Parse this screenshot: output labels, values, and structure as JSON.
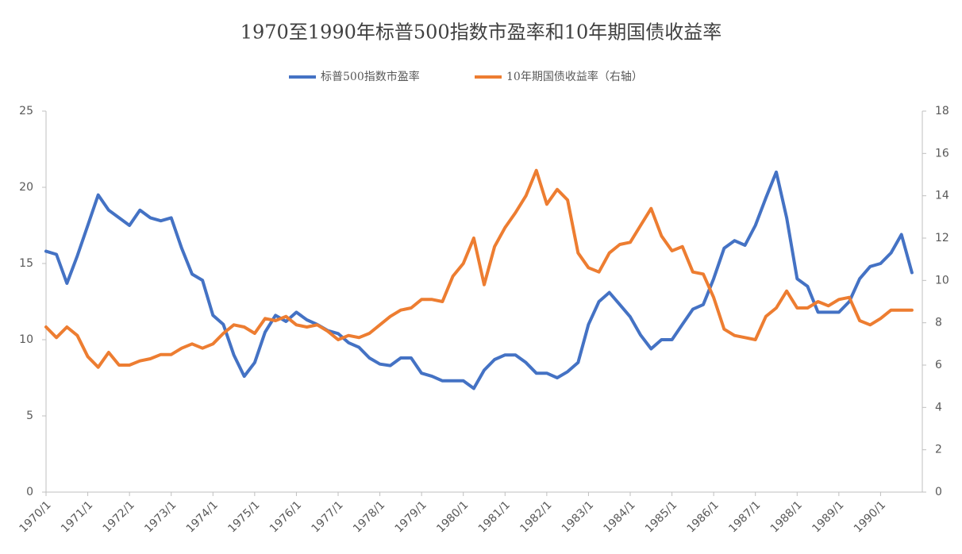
{
  "chart_data": {
    "type": "line",
    "title": "1970至1990年标普500指数市盈率和10年期国债收益率",
    "categories": [
      "1970/1",
      null,
      null,
      null,
      "1971/1",
      null,
      null,
      null,
      "1972/1",
      null,
      null,
      null,
      "1973/1",
      null,
      null,
      null,
      "1974/1",
      null,
      null,
      null,
      "1975/1",
      null,
      null,
      null,
      "1976/1",
      null,
      null,
      null,
      "1977/1",
      null,
      null,
      null,
      "1978/1",
      null,
      null,
      null,
      "1979/1",
      null,
      null,
      null,
      "1980/1",
      null,
      null,
      null,
      "1981/1",
      null,
      null,
      null,
      "1982/1",
      null,
      null,
      null,
      "1983/1",
      null,
      null,
      null,
      "1984/1",
      null,
      null,
      null,
      "1985/1",
      null,
      null,
      null,
      "1986/1",
      null,
      null,
      null,
      "1987/1",
      null,
      null,
      null,
      "1988/1",
      null,
      null,
      null,
      "1989/1",
      null,
      null,
      null,
      "1990/1",
      null,
      null,
      null
    ],
    "series": [
      {
        "name": "标普500指数市盈率",
        "color": "#4472c4",
        "values": [
          15.8,
          15.6,
          13.7,
          15.5,
          17.5,
          19.5,
          18.5,
          18.0,
          17.5,
          18.5,
          18.0,
          17.8,
          18.0,
          16.0,
          14.3,
          13.9,
          11.6,
          11.0,
          9.0,
          7.6,
          8.5,
          10.5,
          11.6,
          11.2,
          11.8,
          11.3,
          11.0,
          10.6,
          10.4,
          9.8,
          9.5,
          8.8,
          8.4,
          8.3,
          8.8,
          8.8,
          7.8,
          7.6,
          7.3,
          7.3,
          7.3,
          6.8,
          8.0,
          8.7,
          9.0,
          9.0,
          8.5,
          7.8,
          7.8,
          7.5,
          7.9,
          8.5,
          11.0,
          12.5,
          13.1,
          12.3,
          11.5,
          10.3,
          9.4,
          10.0,
          10.0,
          11.0,
          12.0,
          12.3,
          14.0,
          16.0,
          16.5,
          16.2,
          17.5,
          19.3,
          21.0,
          18.0,
          14.0,
          13.5,
          11.8,
          11.8,
          11.8,
          12.5,
          14.0,
          14.8,
          15.0,
          15.7,
          16.9,
          14.4
        ]
      },
      {
        "name": "10年期国债收益率（右轴）",
        "color": "#ed7d31",
        "axis": "y2",
        "values": [
          7.8,
          7.3,
          7.8,
          7.4,
          6.4,
          5.9,
          6.6,
          6.0,
          6.0,
          6.2,
          6.3,
          6.5,
          6.5,
          6.8,
          7.0,
          6.8,
          7.0,
          7.5,
          7.9,
          7.8,
          7.5,
          8.2,
          8.1,
          8.3,
          7.9,
          7.8,
          7.9,
          7.6,
          7.2,
          7.4,
          7.3,
          7.5,
          7.9,
          8.3,
          8.6,
          8.7,
          9.1,
          9.1,
          9.0,
          10.2,
          10.8,
          12.0,
          9.8,
          11.6,
          12.5,
          13.2,
          14.0,
          15.2,
          13.6,
          14.3,
          13.8,
          11.3,
          10.6,
          10.4,
          11.3,
          11.7,
          11.8,
          12.6,
          13.4,
          12.1,
          11.4,
          11.6,
          10.4,
          10.3,
          9.2,
          7.7,
          7.4,
          7.3,
          7.2,
          8.3,
          8.7,
          9.5,
          8.7,
          8.7,
          9.0,
          8.8,
          9.1,
          9.2,
          8.1,
          7.9,
          8.2,
          8.6,
          8.6,
          8.6
        ]
      }
    ],
    "ylim": [
      0,
      25
    ],
    "yticks": [
      0,
      5,
      10,
      15,
      20,
      25
    ],
    "y2lim": [
      0,
      18
    ],
    "y2ticks": [
      0,
      2,
      4,
      6,
      8,
      10,
      12,
      14,
      16,
      18
    ],
    "legend": "top"
  }
}
